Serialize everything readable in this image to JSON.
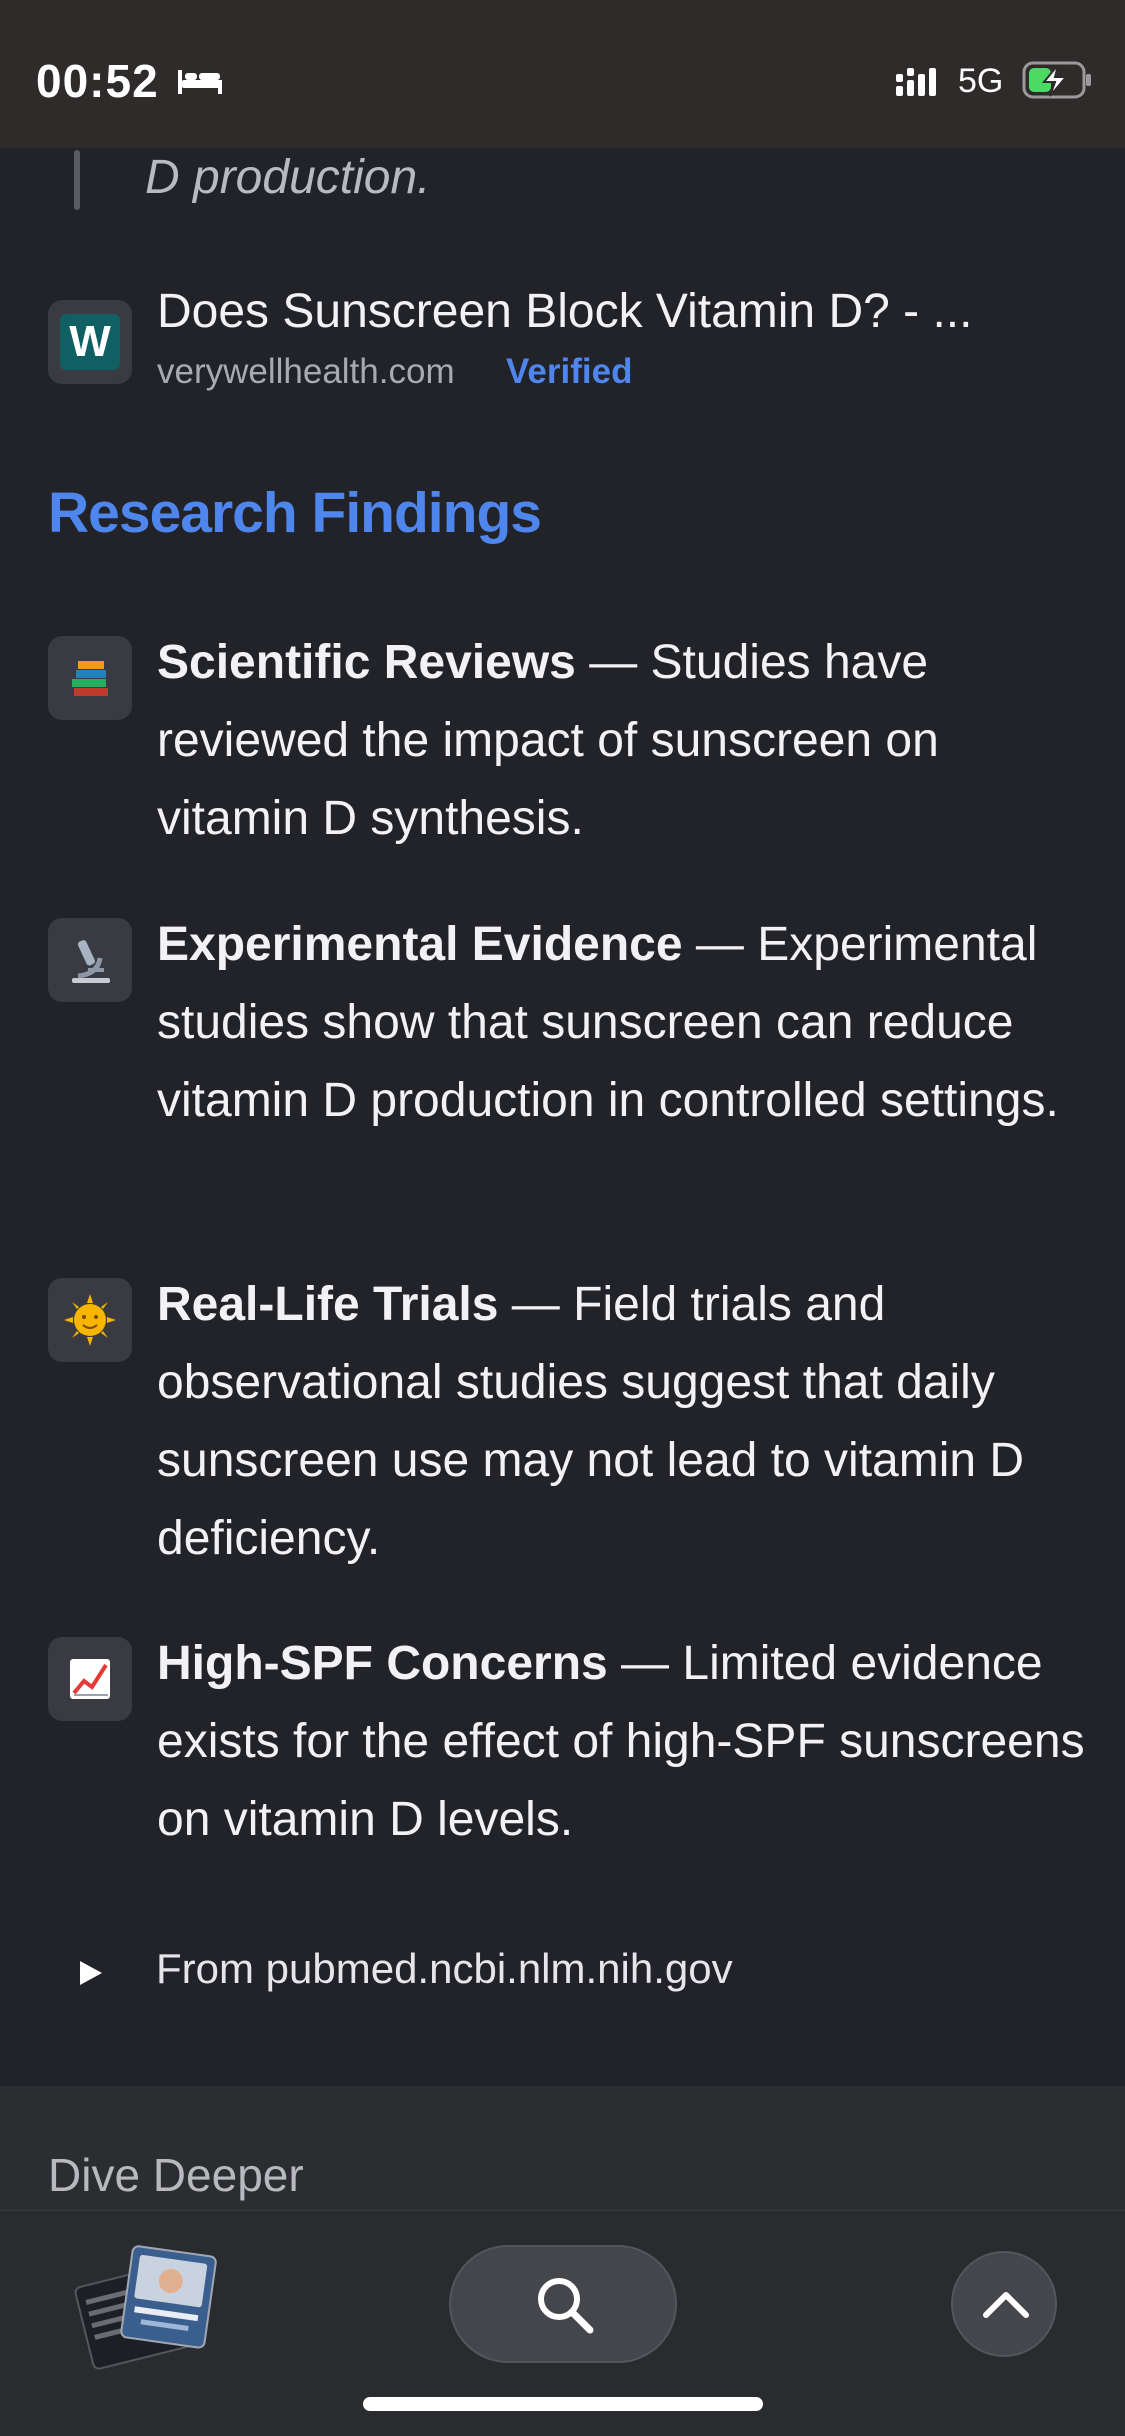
{
  "status_bar": {
    "time": "00:52",
    "network": "5G",
    "icons": [
      "bed-icon",
      "signal-icon",
      "battery-charging-icon"
    ]
  },
  "quote": {
    "text": "D production."
  },
  "source": {
    "title": "Does Sunscreen Block Vitamin D? - ...",
    "domain": "verywellhealth.com",
    "badge": "Verified",
    "icon_letter": "W",
    "icon_color": "#0f5f63"
  },
  "section": {
    "heading": "Research Findings",
    "heading_color": "#4e86ee"
  },
  "findings": [
    {
      "emoji": "📚",
      "icon": "books-icon",
      "title": "Scientific Reviews",
      "text": " — Studies have reviewed the impact of sunscreen on vitamin D synthesis."
    },
    {
      "emoji": "🔬",
      "icon": "microscope-icon",
      "title": "Experimental Evidence",
      "text": " — Experimental studies show that sunscreen can reduce vitamin D production in controlled settings."
    },
    {
      "emoji": "🌞",
      "icon": "sun-icon",
      "title": "Real-Life Trials",
      "text": " — Field trials and observational studies suggest that daily sunscreen use may not lead to vitamin D deficiency."
    },
    {
      "emoji": "📈",
      "icon": "chart-increasing-icon",
      "title": "High-SPF Concerns",
      "text": " — Limited evidence exists for the effect of high-SPF sunscreens on vitamin D levels."
    }
  ],
  "from": {
    "label": "From pubmed.ncbi.nlm.nih.gov"
  },
  "dive_deeper": {
    "label": "Dive Deeper"
  },
  "bottom_bar": {
    "icons": [
      "tab-thumbnail",
      "search-icon",
      "chevron-up-icon"
    ]
  }
}
